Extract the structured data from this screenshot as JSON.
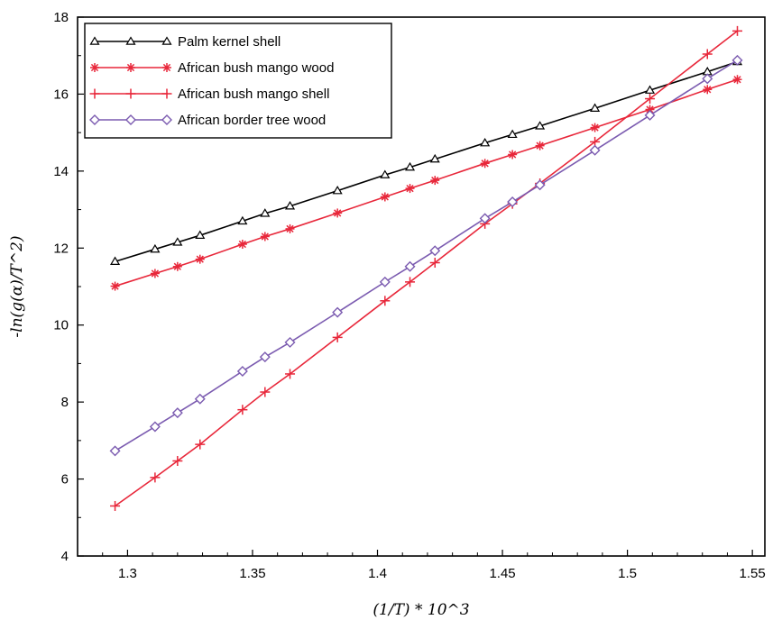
{
  "chart_data": {
    "type": "line",
    "xlabel": "(1/T) * 10^3",
    "ylabel": "-ln(g(α)/T^2)",
    "xlim": [
      1.28,
      1.555
    ],
    "ylim": [
      4,
      18
    ],
    "x_ticks": [
      "1.3",
      "1.35",
      "1.4",
      "1.45",
      "1.5",
      "1.55"
    ],
    "y_ticks": [
      "4",
      "6",
      "8",
      "10",
      "12",
      "14",
      "16",
      "18"
    ],
    "legend_position": "top-left",
    "grid": false,
    "series": [
      {
        "name": "Palm kernel shell",
        "color": "#000000",
        "marker": "triangle",
        "x": [
          1.295,
          1.311,
          1.32,
          1.329,
          1.346,
          1.355,
          1.365,
          1.384,
          1.403,
          1.413,
          1.423,
          1.443,
          1.454,
          1.465,
          1.487,
          1.509,
          1.532,
          1.544
        ],
        "y": [
          11.65,
          11.97,
          12.15,
          12.33,
          12.7,
          12.9,
          13.09,
          13.49,
          13.9,
          14.1,
          14.31,
          14.73,
          14.95,
          15.17,
          15.63,
          16.1,
          16.58,
          16.84
        ]
      },
      {
        "name": "African bush mango wood",
        "color": "#e8273a",
        "marker": "asterisk",
        "x": [
          1.295,
          1.311,
          1.32,
          1.329,
          1.346,
          1.355,
          1.365,
          1.384,
          1.403,
          1.413,
          1.423,
          1.443,
          1.454,
          1.465,
          1.487,
          1.509,
          1.532,
          1.544
        ],
        "y": [
          11.01,
          11.34,
          11.52,
          11.71,
          12.1,
          12.3,
          12.5,
          12.91,
          13.33,
          13.55,
          13.76,
          14.2,
          14.43,
          14.66,
          15.13,
          15.6,
          16.12,
          16.38
        ]
      },
      {
        "name": "African bush mango shell",
        "color": "#e8273a",
        "marker": "plus",
        "x": [
          1.295,
          1.311,
          1.32,
          1.329,
          1.346,
          1.355,
          1.365,
          1.384,
          1.403,
          1.413,
          1.423,
          1.443,
          1.454,
          1.465,
          1.487,
          1.509,
          1.532,
          1.544
        ],
        "y": [
          5.3,
          6.04,
          6.47,
          6.9,
          7.8,
          8.26,
          8.73,
          9.68,
          10.63,
          11.12,
          11.62,
          12.63,
          13.15,
          13.68,
          14.76,
          15.88,
          17.04,
          17.64
        ]
      },
      {
        "name": "African border tree wood",
        "color": "#7b5bb0",
        "marker": "diamond",
        "x": [
          1.295,
          1.311,
          1.32,
          1.329,
          1.346,
          1.355,
          1.365,
          1.384,
          1.403,
          1.413,
          1.423,
          1.443,
          1.454,
          1.465,
          1.487,
          1.509,
          1.532,
          1.544
        ],
        "y": [
          6.73,
          7.36,
          7.72,
          8.08,
          8.8,
          9.17,
          9.55,
          10.33,
          11.12,
          11.52,
          11.93,
          12.77,
          13.2,
          13.64,
          14.54,
          15.45,
          16.4,
          16.88
        ]
      }
    ]
  }
}
